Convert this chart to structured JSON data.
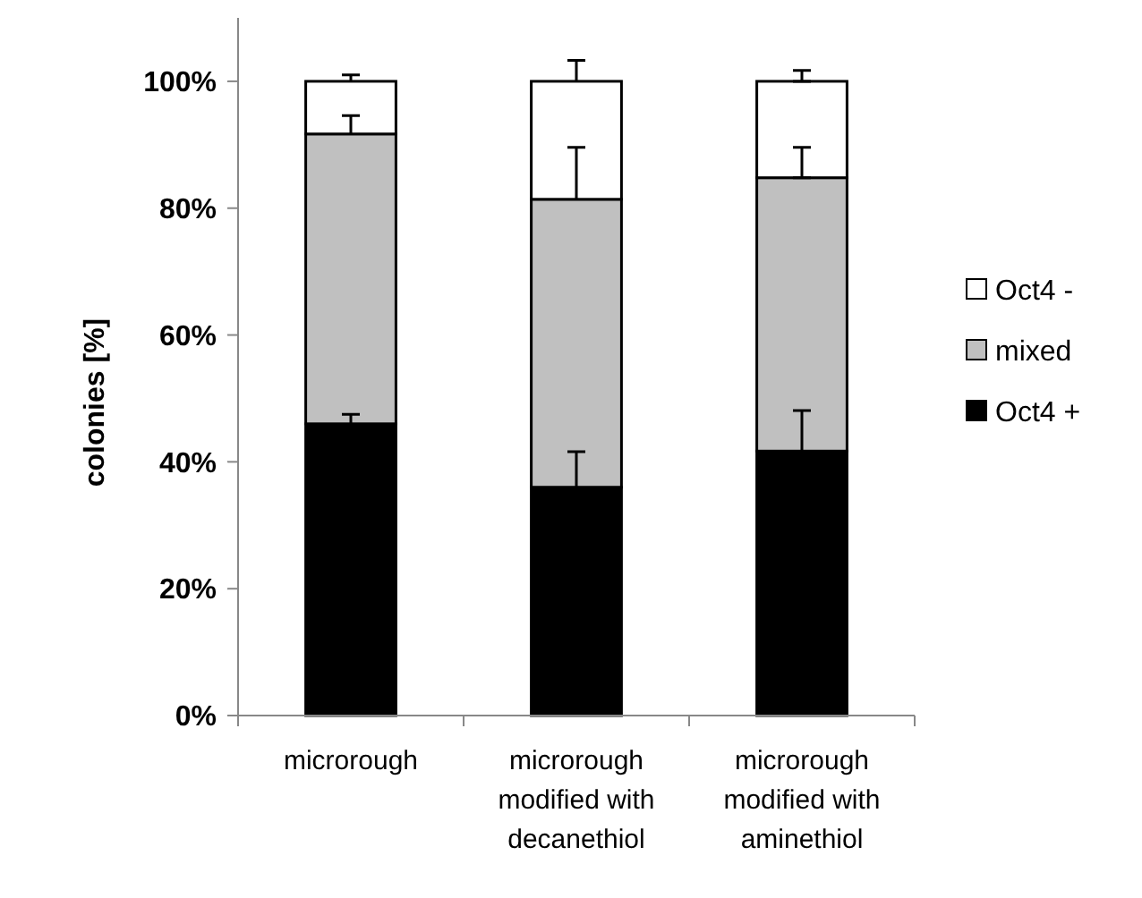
{
  "chart_data": {
    "type": "bar",
    "stacked": true,
    "ylabel": "colonies [%]",
    "categories": [
      "microrough",
      "microrough modified with decanethiol",
      "microrough modified with aminethiol"
    ],
    "series": [
      {
        "name": "Oct4 +",
        "color": "#000000",
        "values": [
          46,
          36,
          41.7
        ],
        "errors": [
          [
            46,
            47.5
          ],
          [
            36,
            41.6
          ],
          [
            41.7,
            48.1
          ]
        ]
      },
      {
        "name": "mixed",
        "color": "#c0c0c0",
        "values": [
          45.7,
          45.4,
          43.1
        ],
        "errors": [
          [
            91.7,
            94.6
          ],
          [
            81.4,
            89.6
          ],
          [
            84.8,
            89.6
          ]
        ]
      },
      {
        "name": "Oct4 -",
        "color": "#ffffff",
        "values": [
          8.3,
          18.6,
          15.2
        ],
        "errors": [
          [
            100,
            101
          ],
          [
            100,
            103.3
          ],
          [
            100,
            101.7
          ]
        ]
      }
    ],
    "ylim": [
      0,
      110
    ],
    "yticks": [
      {
        "value": 0,
        "label": "0%"
      },
      {
        "value": 20,
        "label": "20%"
      },
      {
        "value": 40,
        "label": "40%"
      },
      {
        "value": 60,
        "label": "60%"
      },
      {
        "value": 80,
        "label": "80%"
      },
      {
        "value": 100,
        "label": "100%"
      }
    ],
    "grid": false,
    "legend": "right"
  }
}
